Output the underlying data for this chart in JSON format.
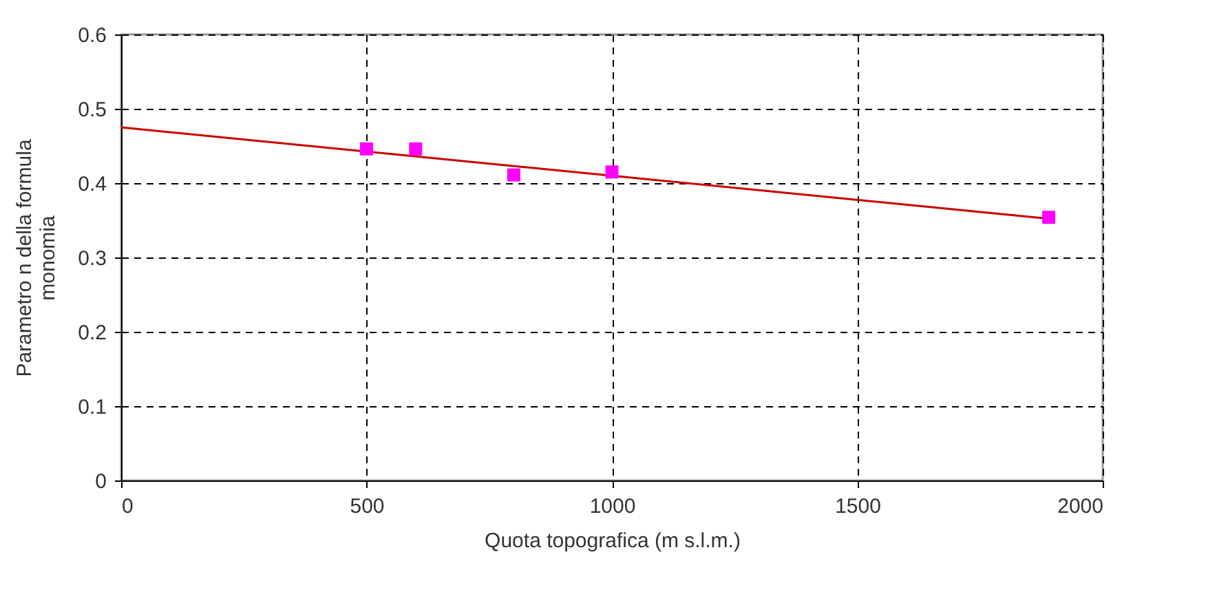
{
  "chart_data": {
    "type": "scatter",
    "xlabel": "Quota topografica (m s.l.m.)",
    "ylabel": "Parametro n della formula monomia",
    "xlim": [
      0,
      2000
    ],
    "xticks": [
      0,
      500,
      1000,
      1500,
      2000
    ],
    "ylim": [
      0,
      0.6
    ],
    "yticks": [
      0,
      0.1,
      0.2,
      0.3,
      0.4,
      0.5,
      0.6
    ],
    "grid": true,
    "marker": "square",
    "series": [
      {
        "color": "#ff00ff",
        "x": [
          500,
          600,
          800,
          1000,
          1890
        ],
        "values": [
          0.446,
          0.446,
          0.411,
          0.415,
          0.354
        ]
      },
      {
        "type": "line",
        "color": "#cc0000",
        "marker": "none",
        "x": [
          0,
          1890
        ],
        "values": [
          0.475,
          0.352
        ]
      }
    ]
  }
}
